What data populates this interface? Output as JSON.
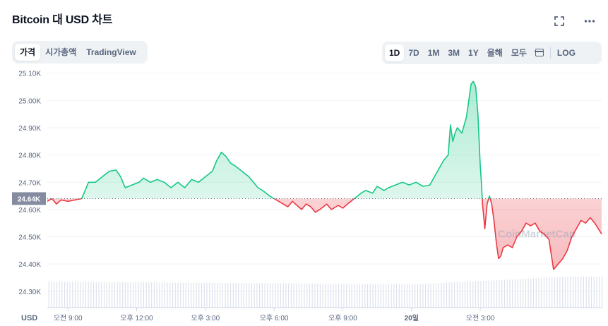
{
  "header": {
    "title": "Bitcoin 대 USD 차트",
    "fullscreen_icon": "fullscreen-icon",
    "more_icon": "more-horizontal-icon"
  },
  "tabs_left": [
    "가격",
    "시가총액",
    "TradingView"
  ],
  "tabs_left_active": 0,
  "ranges": [
    "1D",
    "7D",
    "1M",
    "3M",
    "1Y",
    "올해",
    "모두"
  ],
  "ranges_active": 0,
  "calendar_icon": "calendar-icon",
  "log_label": "LOG",
  "colors": {
    "up": "#16c784",
    "down": "#ea3943",
    "baseline_tag": "#858ca2",
    "volume": "#cfd6e4"
  },
  "chart_data": {
    "type": "area",
    "currency_label": "USD",
    "baseline": 24.64,
    "baseline_label": "24.64K",
    "ylim": [
      24.24,
      25.12
    ],
    "yticks": [
      "24.30K",
      "24.40K",
      "24.50K",
      "24.60K",
      "24.70K",
      "24.80K",
      "24.90K",
      "25.00K",
      "25.10K"
    ],
    "xlim": [
      8.1,
      32.3
    ],
    "xticks": [
      {
        "label": "오전 9:00",
        "hour": 9
      },
      {
        "label": "오후 12:00",
        "hour": 12
      },
      {
        "label": "오후 3:00",
        "hour": 15
      },
      {
        "label": "오후 6:00",
        "hour": 18
      },
      {
        "label": "오후 9:00",
        "hour": 21
      },
      {
        "label": "20일",
        "hour": 24
      },
      {
        "label": "오전 3:00",
        "hour": 27
      }
    ],
    "watermark": "CoinMarketCap",
    "series": [
      {
        "values": [
          [
            8.1,
            24.63
          ],
          [
            8.3,
            24.64
          ],
          [
            8.5,
            24.62
          ],
          [
            8.7,
            24.635
          ],
          [
            9.0,
            24.63
          ],
          [
            9.3,
            24.635
          ],
          [
            9.6,
            24.64
          ],
          [
            9.9,
            24.7
          ],
          [
            10.2,
            24.7
          ],
          [
            10.5,
            24.72
          ],
          [
            10.8,
            24.74
          ],
          [
            11.1,
            24.745
          ],
          [
            11.3,
            24.72
          ],
          [
            11.5,
            24.68
          ],
          [
            11.8,
            24.69
          ],
          [
            12.1,
            24.7
          ],
          [
            12.3,
            24.715
          ],
          [
            12.6,
            24.7
          ],
          [
            12.9,
            24.71
          ],
          [
            13.2,
            24.7
          ],
          [
            13.5,
            24.68
          ],
          [
            13.8,
            24.7
          ],
          [
            14.1,
            24.68
          ],
          [
            14.4,
            24.71
          ],
          [
            14.7,
            24.7
          ],
          [
            15.0,
            24.72
          ],
          [
            15.3,
            24.74
          ],
          [
            15.5,
            24.78
          ],
          [
            15.7,
            24.81
          ],
          [
            15.9,
            24.795
          ],
          [
            16.1,
            24.77
          ],
          [
            16.3,
            24.76
          ],
          [
            16.6,
            24.74
          ],
          [
            16.9,
            24.72
          ],
          [
            17.1,
            24.7
          ],
          [
            17.3,
            24.68
          ],
          [
            17.5,
            24.67
          ],
          [
            17.8,
            24.65
          ],
          [
            18.0,
            24.64
          ],
          [
            18.2,
            24.63
          ],
          [
            18.4,
            24.62
          ],
          [
            18.6,
            24.61
          ],
          [
            18.8,
            24.63
          ],
          [
            19.0,
            24.615
          ],
          [
            19.2,
            24.6
          ],
          [
            19.4,
            24.62
          ],
          [
            19.6,
            24.61
          ],
          [
            19.8,
            24.59
          ],
          [
            20.0,
            24.6
          ],
          [
            20.3,
            24.62
          ],
          [
            20.5,
            24.6
          ],
          [
            20.8,
            24.615
          ],
          [
            21.0,
            24.605
          ],
          [
            21.2,
            24.62
          ],
          [
            21.5,
            24.64
          ],
          [
            21.8,
            24.66
          ],
          [
            22.0,
            24.67
          ],
          [
            22.3,
            24.66
          ],
          [
            22.5,
            24.685
          ],
          [
            22.8,
            24.67
          ],
          [
            23.0,
            24.68
          ],
          [
            23.3,
            24.69
          ],
          [
            23.6,
            24.7
          ],
          [
            23.9,
            24.69
          ],
          [
            24.2,
            24.7
          ],
          [
            24.5,
            24.685
          ],
          [
            24.8,
            24.69
          ],
          [
            25.0,
            24.72
          ],
          [
            25.2,
            24.75
          ],
          [
            25.4,
            24.78
          ],
          [
            25.6,
            24.8
          ],
          [
            25.7,
            24.91
          ],
          [
            25.8,
            24.85
          ],
          [
            25.9,
            24.88
          ],
          [
            26.0,
            24.9
          ],
          [
            26.2,
            24.88
          ],
          [
            26.4,
            24.94
          ],
          [
            26.6,
            25.06
          ],
          [
            26.7,
            25.07
          ],
          [
            26.8,
            25.05
          ],
          [
            26.9,
            24.95
          ],
          [
            27.0,
            24.76
          ],
          [
            27.05,
            24.7
          ],
          [
            27.1,
            24.62
          ],
          [
            27.2,
            24.53
          ],
          [
            27.3,
            24.62
          ],
          [
            27.4,
            24.65
          ],
          [
            27.5,
            24.62
          ],
          [
            27.6,
            24.56
          ],
          [
            27.7,
            24.48
          ],
          [
            27.8,
            24.42
          ],
          [
            27.9,
            24.43
          ],
          [
            28.0,
            24.46
          ],
          [
            28.2,
            24.47
          ],
          [
            28.4,
            24.46
          ],
          [
            28.6,
            24.5
          ],
          [
            28.8,
            24.52
          ],
          [
            29.0,
            24.55
          ],
          [
            29.2,
            24.54
          ],
          [
            29.4,
            24.55
          ],
          [
            29.6,
            24.52
          ],
          [
            29.8,
            24.51
          ],
          [
            30.0,
            24.49
          ],
          [
            30.2,
            24.38
          ],
          [
            30.4,
            24.4
          ],
          [
            30.6,
            24.42
          ],
          [
            30.8,
            24.45
          ],
          [
            31.0,
            24.5
          ],
          [
            31.2,
            24.53
          ],
          [
            31.4,
            24.56
          ],
          [
            31.6,
            24.55
          ],
          [
            31.8,
            24.57
          ],
          [
            32.0,
            24.55
          ],
          [
            32.15,
            24.53
          ],
          [
            32.3,
            24.51
          ]
        ]
      }
    ]
  }
}
